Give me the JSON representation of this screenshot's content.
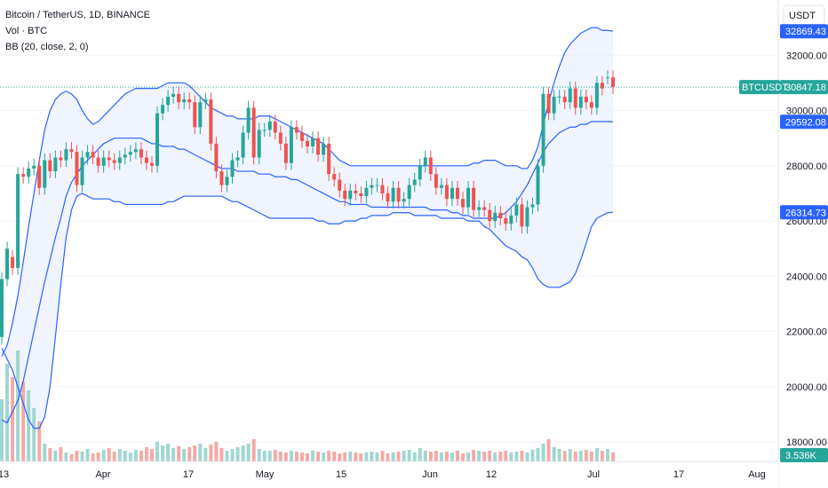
{
  "legend": {
    "title": "Bitcoin / TetherUS, 1D, BINANCE",
    "volume": "Vol · BTC",
    "indicator": "BB (20, close, 2, 0)"
  },
  "currency_button": "USDT",
  "colors": {
    "up": "#26a69a",
    "down": "#ef5350",
    "band": "#2962ff",
    "band_fill": "#e8f0fe",
    "current_price": "#26a69a",
    "vol_up": "#9fd7d0",
    "vol_down": "#f5a9a7"
  },
  "chart_data": {
    "type": "candlestick",
    "symbol": "BTCUSDT",
    "x_tick_labels": [
      "13",
      "Apr",
      "17",
      "May",
      "15",
      "Jun",
      "12",
      "Jul",
      "17",
      "Aug"
    ],
    "y_tick_labels": [
      "18000.00",
      "20000.00",
      "22000.00",
      "24000.00",
      "26000.00",
      "28000.00",
      "30000.00",
      "32000.00"
    ],
    "ylim": [
      17300,
      34000
    ],
    "price_labels": [
      {
        "label": "BTCUSDT",
        "value": "30847.18",
        "color": "#26a69a"
      },
      {
        "label": "",
        "value": "32869.43",
        "color": "#2962ff"
      },
      {
        "label": "",
        "value": "29592.08",
        "color": "#2962ff"
      },
      {
        "label": "",
        "value": "26314.73",
        "color": "#2962ff"
      },
      {
        "label": "",
        "value": "3.536K",
        "color": "#26a69a"
      }
    ],
    "candles_close": [
      23900,
      25000,
      24300,
      27700,
      27600,
      27900,
      28000,
      27200,
      28200,
      27800,
      28300,
      28200,
      28600,
      28500,
      27300,
      28300,
      28500,
      28300,
      28000,
      28300,
      28200,
      28100,
      28300,
      28400,
      28500,
      28600,
      28300,
      28100,
      28000,
      29900,
      30200,
      30500,
      30600,
      30300,
      30400,
      30300,
      29400,
      30300,
      30400,
      28800,
      27800,
      27300,
      27600,
      28200,
      28300,
      29200,
      30100,
      28300,
      29300,
      29300,
      29600,
      29200,
      28800,
      28100,
      29400,
      29200,
      28900,
      28700,
      29000,
      28400,
      28800,
      27700,
      27500,
      27100,
      26800,
      27100,
      27000,
      26900,
      27200,
      27300,
      27300,
      27000,
      26700,
      27200,
      26700,
      26800,
      27300,
      27500,
      28000,
      28300,
      27700,
      27200,
      27300,
      26800,
      27200,
      26800,
      26500,
      27200,
      26400,
      26500,
      26400,
      26000,
      26300,
      26100,
      25900,
      26200,
      26600,
      25800,
      26500,
      26600,
      28000,
      30600,
      29900,
      30500,
      30500,
      30300,
      30800,
      30100,
      30500,
      30300,
      30100,
      31000,
      30800,
      31200,
      30847
    ],
    "candles_open": [
      21800,
      23900,
      24700,
      24300,
      27700,
      27600,
      27900,
      28000,
      27200,
      28200,
      27800,
      28300,
      28200,
      28600,
      28500,
      27300,
      28300,
      28500,
      28300,
      28000,
      28300,
      28200,
      28100,
      28300,
      28400,
      28500,
      28600,
      28300,
      28100,
      28000,
      29900,
      30200,
      30500,
      30600,
      30300,
      30400,
      30300,
      29400,
      30300,
      30400,
      28800,
      27800,
      27300,
      27600,
      28200,
      28300,
      29200,
      30100,
      28300,
      29300,
      29300,
      29600,
      29200,
      28800,
      28100,
      29400,
      29200,
      28900,
      28700,
      29000,
      28400,
      28800,
      27700,
      27500,
      27100,
      26800,
      27100,
      27000,
      26900,
      27200,
      27300,
      27300,
      27000,
      26700,
      27200,
      26700,
      26800,
      27300,
      27500,
      28000,
      28300,
      27700,
      27200,
      27300,
      26800,
      27200,
      26800,
      26500,
      27200,
      26400,
      26500,
      26400,
      26000,
      26300,
      26100,
      25900,
      26200,
      26600,
      25800,
      26500,
      26600,
      28000,
      30600,
      29900,
      30500,
      30500,
      30300,
      30800,
      30100,
      30500,
      30300,
      30100,
      31000,
      31200,
      31200
    ],
    "bb_upper": [
      21100,
      21500,
      22300,
      23300,
      24500,
      25800,
      27000,
      28200,
      29300,
      30000,
      30400,
      30600,
      30700,
      30600,
      30400,
      30000,
      29700,
      29500,
      29600,
      29800,
      30000,
      30200,
      30400,
      30600,
      30700,
      30800,
      30800,
      30800,
      30800,
      30800,
      30900,
      31000,
      31000,
      31000,
      31000,
      30900,
      30700,
      30500,
      30300,
      30100,
      30000,
      29900,
      29800,
      29800,
      29700,
      29700,
      29700,
      29700,
      29800,
      29800,
      29800,
      29700,
      29600,
      29500,
      29400,
      29300,
      29200,
      29100,
      29000,
      28900,
      28800,
      28600,
      28400,
      28200,
      28100,
      28000,
      28000,
      28000,
      28000,
      28000,
      28000,
      28000,
      28000,
      28000,
      28000,
      28000,
      28000,
      28000,
      28000,
      28000,
      28000,
      28000,
      28000,
      28000,
      28000,
      28000,
      28000,
      28000,
      28100,
      28100,
      28200,
      28200,
      28200,
      28100,
      28000,
      28000,
      28000,
      27900,
      27900,
      28200,
      28700,
      29500,
      30300,
      31000,
      31600,
      32100,
      32400,
      32600,
      32800,
      32900,
      33000,
      33000,
      32900,
      32900,
      32870
    ],
    "bb_lower": [
      21400,
      21000,
      20600,
      20000,
      19400,
      18800,
      18500,
      18500,
      18900,
      20000,
      21800,
      23700,
      25400,
      26400,
      26900,
      27000,
      26900,
      26800,
      26800,
      26800,
      26800,
      26700,
      26700,
      26600,
      26600,
      26600,
      26600,
      26600,
      26600,
      26600,
      26600,
      26700,
      26700,
      26800,
      26900,
      26900,
      26900,
      26900,
      26900,
      26900,
      26900,
      26900,
      26800,
      26700,
      26700,
      26600,
      26500,
      26400,
      26300,
      26200,
      26100,
      26100,
      26100,
      26100,
      26100,
      26100,
      26100,
      26100,
      26100,
      26000,
      26000,
      25900,
      25900,
      25900,
      26000,
      26000,
      26000,
      26100,
      26100,
      26200,
      26200,
      26200,
      26200,
      26300,
      26300,
      26300,
      26300,
      26200,
      26200,
      26200,
      26200,
      26200,
      26100,
      26100,
      26100,
      26100,
      26100,
      26000,
      26000,
      26000,
      25800,
      25700,
      25500,
      25300,
      25100,
      25000,
      24900,
      24700,
      24600,
      24300,
      23900,
      23700,
      23600,
      23600,
      23600,
      23700,
      23800,
      24100,
      24600,
      25200,
      25800,
      26100,
      26200,
      26300,
      26315
    ],
    "bb_basis": [
      18800,
      18700,
      19100,
      19500,
      20200,
      21100,
      22000,
      22900,
      23800,
      24600,
      25400,
      26100,
      26900,
      27400,
      27700,
      28000,
      28200,
      28400,
      28600,
      28800,
      28900,
      29000,
      29000,
      29000,
      29000,
      29000,
      29000,
      28900,
      28800,
      28800,
      28700,
      28700,
      28700,
      28600,
      28600,
      28500,
      28400,
      28300,
      28200,
      28100,
      28000,
      27900,
      27900,
      27900,
      27800,
      27800,
      27800,
      27800,
      27700,
      27700,
      27700,
      27600,
      27600,
      27600,
      27500,
      27500,
      27400,
      27300,
      27200,
      27100,
      27000,
      26900,
      26800,
      26700,
      26700,
      26600,
      26600,
      26600,
      26600,
      26500,
      26500,
      26500,
      26500,
      26500,
      26500,
      26500,
      26500,
      26500,
      26500,
      26500,
      26400,
      26400,
      26400,
      26400,
      26300,
      26300,
      26200,
      26200,
      26100,
      26100,
      26100,
      26100,
      26100,
      26200,
      26300,
      26500,
      26700,
      27000,
      27300,
      27700,
      28100,
      28500,
      28800,
      29000,
      29200,
      29300,
      29400,
      29400,
      29500,
      29500,
      29600,
      29600,
      29600,
      29600,
      29592
    ]
  }
}
